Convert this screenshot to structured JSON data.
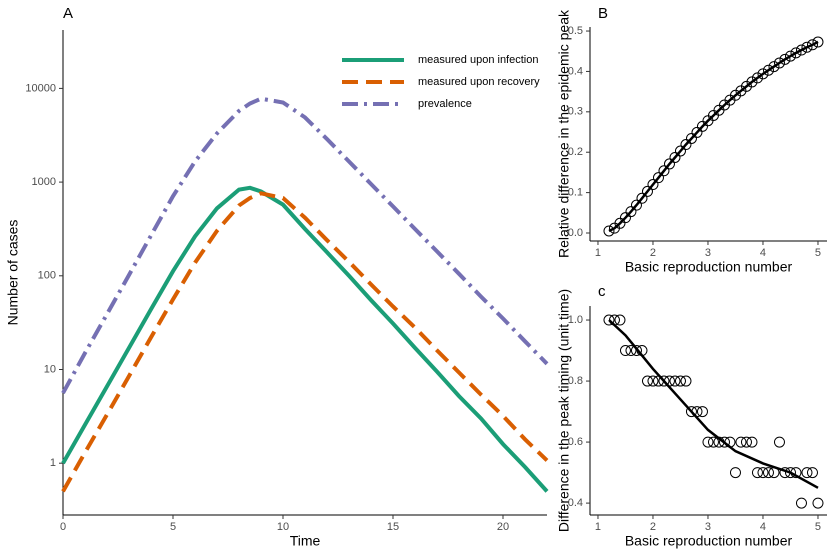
{
  "chart_data": [
    {
      "type": "line",
      "panel": "A",
      "xlabel": "Time",
      "ylabel": "Number of cases",
      "log_y": true,
      "x": [
        0,
        1,
        2,
        3,
        4,
        5,
        6,
        7,
        8,
        8.5,
        9,
        10,
        11,
        12,
        13,
        14,
        15,
        16,
        17,
        18,
        19,
        20,
        21,
        22
      ],
      "series": [
        {
          "name": "measured upon infection",
          "color": "#1b9e77",
          "dash": "solid",
          "values": [
            1,
            2.57,
            6.6,
            17,
            44,
            112,
            263,
            525,
            832,
            870,
            794,
            575,
            316,
            178,
            100,
            55,
            31,
            17,
            9.5,
            5.2,
            3.0,
            1.6,
            0.91,
            0.5
          ]
        },
        {
          "name": "measured upon recovery",
          "color": "#d95f02",
          "dash": "dashed",
          "values": [
            0.5,
            1.3,
            3.3,
            8.5,
            22,
            56,
            138,
            302,
            562,
            676,
            759,
            676,
            417,
            240,
            141,
            81,
            47,
            28,
            16,
            9.3,
            5.4,
            3.2,
            1.8,
            1.07
          ]
        },
        {
          "name": "prevalence",
          "color": "#7570b3",
          "dash": "dashdot",
          "values": [
            5.6,
            15,
            39,
            102,
            269,
            708,
            1660,
            3310,
            5750,
            6900,
            7760,
            7080,
            4900,
            2880,
            1660,
            955,
            550,
            316,
            182,
            105,
            60,
            35,
            20,
            11.5
          ]
        }
      ],
      "xlim": [
        0,
        22
      ],
      "xticks": [
        0,
        5,
        10,
        15,
        20
      ],
      "ylim": [
        0.28,
        42000
      ],
      "yticks": [
        1,
        10,
        100,
        1000,
        10000
      ],
      "legend": "top-right"
    },
    {
      "type": "scatter",
      "panel": "B",
      "xlabel": "Basic reproduction number",
      "ylabel": "Relative difference in the epidemic peak",
      "line": true,
      "x": [
        1.2,
        1.3,
        1.4,
        1.5,
        1.6,
        1.7,
        1.8,
        1.9,
        2.0,
        2.1,
        2.2,
        2.3,
        2.4,
        2.5,
        2.6,
        2.7,
        2.8,
        2.9,
        3.0,
        3.1,
        3.2,
        3.3,
        3.4,
        3.5,
        3.6,
        3.7,
        3.8,
        3.9,
        4.0,
        4.1,
        4.2,
        4.3,
        4.4,
        4.5,
        4.6,
        4.7,
        4.8,
        4.9,
        5.0
      ],
      "values": [
        0.005,
        0.012,
        0.024,
        0.038,
        0.053,
        0.069,
        0.086,
        0.103,
        0.12,
        0.137,
        0.154,
        0.171,
        0.187,
        0.203,
        0.219,
        0.234,
        0.249,
        0.264,
        0.278,
        0.291,
        0.304,
        0.317,
        0.329,
        0.341,
        0.352,
        0.363,
        0.374,
        0.384,
        0.394,
        0.403,
        0.412,
        0.421,
        0.43,
        0.438,
        0.446,
        0.453,
        0.46,
        0.466,
        0.473
      ],
      "xlim": [
        0.855,
        5.164
      ],
      "xticks": [
        1,
        2,
        3,
        4,
        5
      ],
      "ylim": [
        -0.0198,
        0.51
      ],
      "yticks": [
        {
          "value": 0,
          "label": "0.0"
        },
        0.1,
        0.2,
        0.3,
        0.4,
        0.5
      ]
    },
    {
      "type": "scatter",
      "panel": "c",
      "xlabel": "Basic reproduction number",
      "ylabel": "Difference in the peak timing (unit time)",
      "x": [
        1.2,
        1.3,
        1.4,
        1.5,
        1.6,
        1.7,
        1.8,
        1.9,
        2.0,
        2.1,
        2.2,
        2.3,
        2.4,
        2.5,
        2.6,
        2.7,
        2.8,
        2.9,
        3.0,
        3.1,
        3.2,
        3.3,
        3.4,
        3.5,
        3.6,
        3.7,
        3.8,
        3.9,
        4.0,
        4.1,
        4.2,
        4.3,
        4.4,
        4.5,
        4.6,
        4.7,
        4.8,
        4.9,
        5.0
      ],
      "values": [
        1,
        1,
        1,
        0.9,
        0.9,
        0.9,
        0.9,
        0.8,
        0.8,
        0.8,
        0.8,
        0.8,
        0.8,
        0.8,
        0.8,
        0.7,
        0.7,
        0.7,
        0.6,
        0.6,
        0.6,
        0.6,
        0.6,
        0.5,
        0.6,
        0.6,
        0.6,
        0.5,
        0.5,
        0.5,
        0.5,
        0.6,
        0.5,
        0.5,
        0.5,
        0.4,
        0.5,
        0.5,
        0.4
      ],
      "fit_x": [
        1.2,
        1.5,
        2,
        2.5,
        3,
        3.5,
        4,
        4.5,
        5
      ],
      "fit_values": [
        1.0,
        0.95,
        0.84,
        0.74,
        0.64,
        0.57,
        0.53,
        0.5,
        0.45
      ],
      "xlim": [
        0.855,
        5.164
      ],
      "xticks": [
        1,
        2,
        3,
        4,
        5
      ],
      "ylim": [
        0.361,
        1.046
      ],
      "yticks": [
        0.4,
        0.6,
        0.8,
        {
          "value": 1,
          "label": "1.0"
        }
      ]
    }
  ]
}
